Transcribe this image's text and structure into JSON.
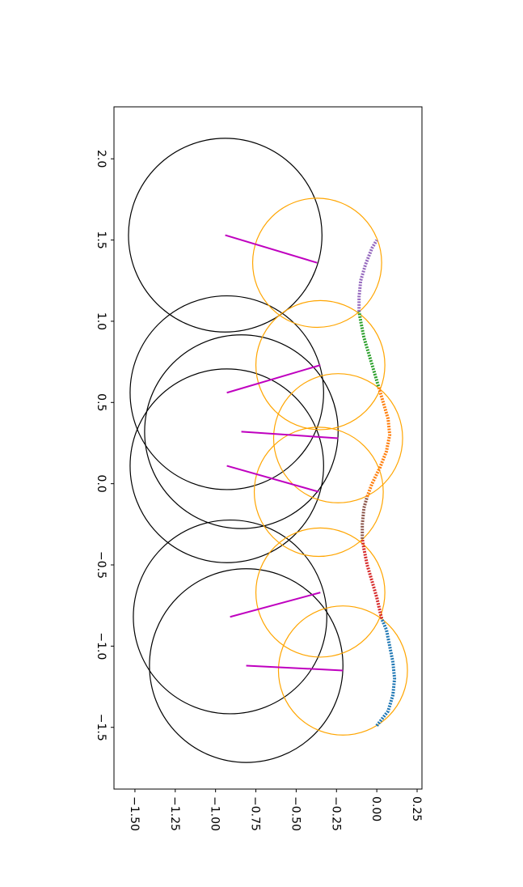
{
  "chart_data": {
    "type": "line",
    "title": "",
    "xlabel": "",
    "ylabel": "",
    "rotated": "90deg clockwise",
    "x_axis": {
      "ticks": [
        -1.5,
        -1.0,
        -0.5,
        0.0,
        0.5,
        1.0,
        1.5,
        2.0
      ],
      "tick_labels": [
        "−1.5",
        "−1.0",
        "−0.5",
        "0.0",
        "0.5",
        "1.0",
        "1.5",
        "2.0"
      ],
      "range": [
        -1.88,
        2.32
      ]
    },
    "y_axis": {
      "ticks": [
        -1.5,
        -1.25,
        -1.0,
        -0.75,
        -0.5,
        -0.25,
        0.0,
        0.25
      ],
      "tick_labels": [
        "−1.50",
        "−1.25",
        "−1.00",
        "−0.75",
        "−0.50",
        "−0.25",
        "0.00",
        "0.25"
      ],
      "range": [
        -1.63,
        0.28
      ]
    },
    "grid": false,
    "legend": "none",
    "large_circles": [
      {
        "center": [
          -1.12,
          -0.81
        ],
        "radius": 0.6
      },
      {
        "center": [
          -0.82,
          -0.91
        ],
        "radius": 0.6
      },
      {
        "center": [
          0.11,
          -0.93
        ],
        "radius": 0.6
      },
      {
        "center": [
          0.32,
          -0.84
        ],
        "radius": 0.6
      },
      {
        "center": [
          0.56,
          -0.93
        ],
        "radius": 0.6
      },
      {
        "center": [
          1.53,
          -0.94
        ],
        "radius": 0.6
      }
    ],
    "small_circles": [
      {
        "center": [
          -1.15,
          -0.21
        ],
        "radius": 0.4
      },
      {
        "center": [
          -0.67,
          -0.35
        ],
        "radius": 0.4
      },
      {
        "center": [
          -0.05,
          -0.36
        ],
        "radius": 0.4
      },
      {
        "center": [
          0.28,
          -0.24
        ],
        "radius": 0.4
      },
      {
        "center": [
          0.73,
          -0.35
        ],
        "radius": 0.4
      },
      {
        "center": [
          1.36,
          -0.37
        ],
        "radius": 0.4
      }
    ],
    "rods": [
      {
        "from": [
          -1.12,
          -0.81
        ],
        "to": [
          -1.15,
          -0.21
        ]
      },
      {
        "from": [
          -0.82,
          -0.91
        ],
        "to": [
          -0.67,
          -0.35
        ]
      },
      {
        "from": [
          0.11,
          -0.93
        ],
        "to": [
          -0.05,
          -0.36
        ]
      },
      {
        "from": [
          0.32,
          -0.84
        ],
        "to": [
          0.28,
          -0.24
        ]
      },
      {
        "from": [
          0.56,
          -0.93
        ],
        "to": [
          0.73,
          -0.35
        ]
      },
      {
        "from": [
          1.53,
          -0.94
        ],
        "to": [
          1.36,
          -0.37
        ]
      }
    ],
    "series": [
      {
        "color": "#1f77b4",
        "points": [
          [
            -1.49,
            0.0
          ],
          [
            -1.4,
            0.07
          ],
          [
            -1.3,
            0.1
          ],
          [
            -1.2,
            0.11
          ],
          [
            -1.1,
            0.1
          ],
          [
            -1.0,
            0.08
          ],
          [
            -0.9,
            0.06
          ],
          [
            -0.83,
            0.03
          ]
        ]
      },
      {
        "color": "#d62728",
        "points": [
          [
            -0.83,
            0.03
          ],
          [
            -0.7,
            0.0
          ],
          [
            -0.6,
            -0.03
          ],
          [
            -0.5,
            -0.06
          ],
          [
            -0.4,
            -0.08
          ],
          [
            -0.34,
            -0.09
          ]
        ]
      },
      {
        "color": "#8c564b",
        "points": [
          [
            -0.34,
            -0.09
          ],
          [
            -0.25,
            -0.09
          ],
          [
            -0.15,
            -0.08
          ],
          [
            -0.08,
            -0.06
          ]
        ]
      },
      {
        "color": "#ff7f0e",
        "points": [
          [
            -0.08,
            -0.06
          ],
          [
            0.0,
            -0.03
          ],
          [
            0.1,
            0.02
          ],
          [
            0.2,
            0.06
          ],
          [
            0.3,
            0.08
          ],
          [
            0.4,
            0.07
          ],
          [
            0.5,
            0.04
          ],
          [
            0.6,
            0.01
          ]
        ]
      },
      {
        "color": "#2ca02c",
        "points": [
          [
            0.6,
            0.01
          ],
          [
            0.7,
            -0.02
          ],
          [
            0.8,
            -0.05
          ],
          [
            0.9,
            -0.08
          ],
          [
            1.0,
            -0.1
          ],
          [
            1.06,
            -0.11
          ]
        ]
      },
      {
        "color": "#9467bd",
        "points": [
          [
            1.06,
            -0.11
          ],
          [
            1.15,
            -0.11
          ],
          [
            1.25,
            -0.1
          ],
          [
            1.35,
            -0.07
          ],
          [
            1.45,
            -0.03
          ],
          [
            1.5,
            0.0
          ]
        ]
      }
    ]
  }
}
